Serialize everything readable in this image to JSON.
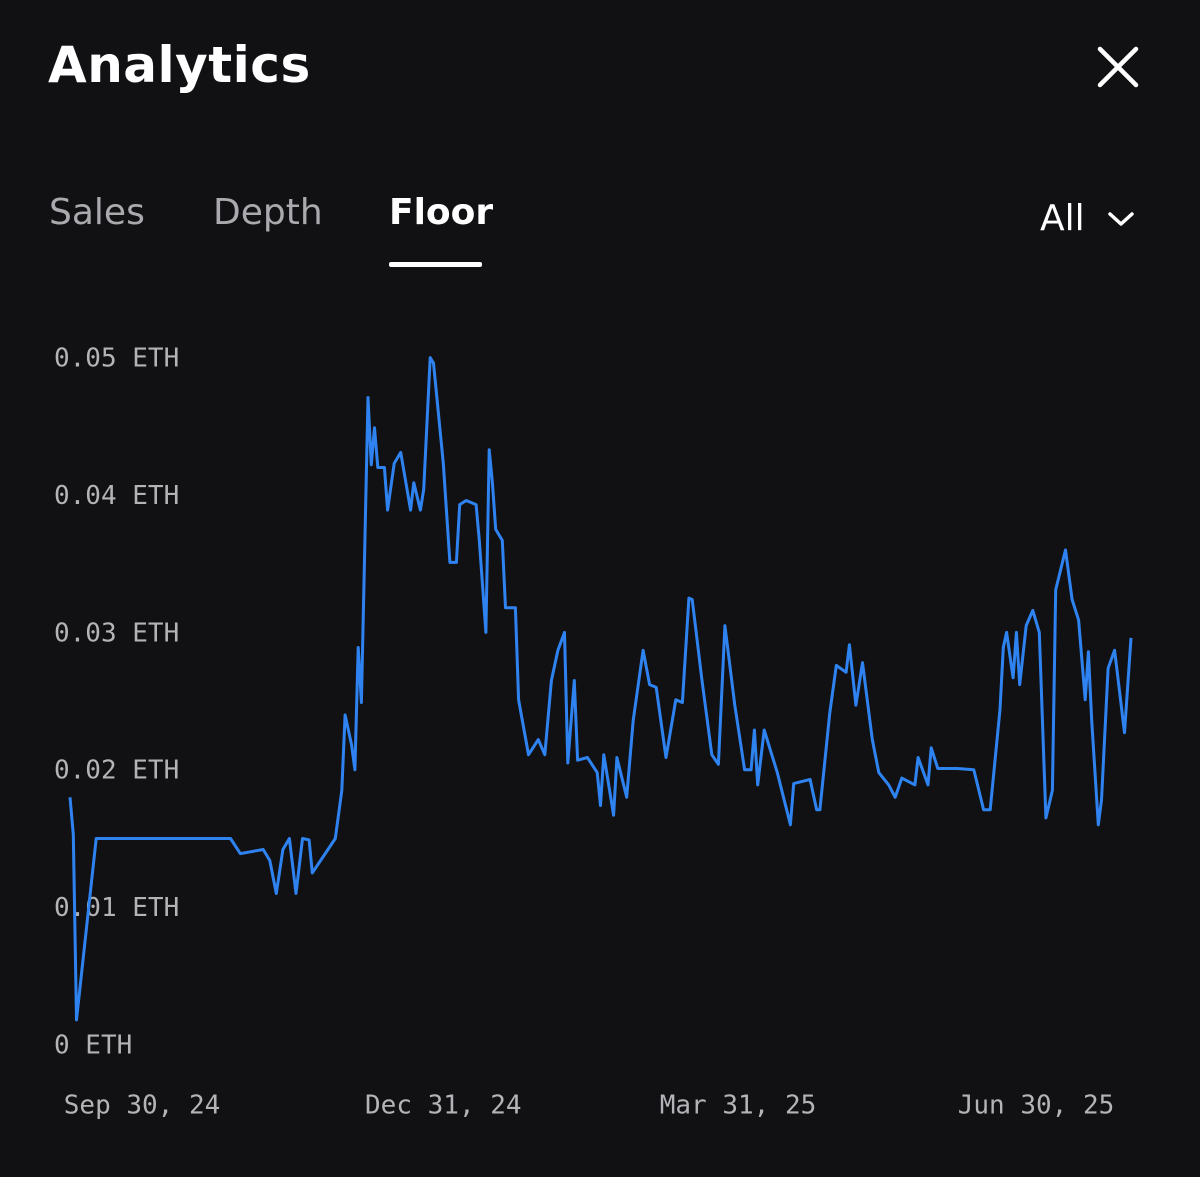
{
  "header": {
    "title": "Analytics"
  },
  "tabs": [
    "Sales",
    "Depth",
    "Floor"
  ],
  "range": "All",
  "chart_data": {
    "type": "line",
    "color": "#2f83f0",
    "x": [
      "2024-09-08",
      "2024-09-09",
      "2024-09-10",
      "2024-09-16",
      "2024-10-27",
      "2024-10-30",
      "2024-11-06",
      "2024-11-08",
      "2024-11-10",
      "2024-11-12",
      "2024-11-14",
      "2024-11-16",
      "2024-11-18",
      "2024-11-20",
      "2024-11-21",
      "2024-11-28",
      "2024-11-30",
      "2024-12-01",
      "2024-12-03",
      "2024-12-04",
      "2024-12-05",
      "2024-12-06",
      "2024-12-08",
      "2024-12-09",
      "2024-12-10",
      "2024-12-11",
      "2024-12-13",
      "2024-12-14",
      "2024-12-16",
      "2024-12-18",
      "2024-12-21",
      "2024-12-22",
      "2024-12-24",
      "2024-12-25",
      "2024-12-27",
      "2024-12-28",
      "2024-12-31",
      "2025-01-02",
      "2025-01-04",
      "2025-01-05",
      "2025-01-07",
      "2025-01-10",
      "2025-01-11",
      "2025-01-13",
      "2025-01-14",
      "2025-01-15",
      "2025-01-16",
      "2025-01-18",
      "2025-01-19",
      "2025-01-22",
      "2025-01-23",
      "2025-01-26",
      "2025-01-29",
      "2025-01-31",
      "2025-02-02",
      "2025-02-04",
      "2025-02-06",
      "2025-02-07",
      "2025-02-09",
      "2025-02-10",
      "2025-02-13",
      "2025-02-16",
      "2025-02-17",
      "2025-02-18",
      "2025-02-21",
      "2025-02-22",
      "2025-02-25",
      "2025-02-27",
      "2025-03-02",
      "2025-03-04",
      "2025-03-06",
      "2025-03-09",
      "2025-03-12",
      "2025-03-14",
      "2025-03-16",
      "2025-03-17",
      "2025-03-20",
      "2025-03-23",
      "2025-03-25",
      "2025-03-27",
      "2025-03-30",
      "2025-04-02",
      "2025-04-04",
      "2025-04-05",
      "2025-04-06",
      "2025-04-08",
      "2025-04-12",
      "2025-04-16",
      "2025-04-17",
      "2025-04-22",
      "2025-04-24",
      "2025-04-25",
      "2025-04-28",
      "2025-04-30",
      "2025-05-03",
      "2025-05-04",
      "2025-05-06",
      "2025-05-08",
      "2025-05-11",
      "2025-05-13",
      "2025-05-16",
      "2025-05-18",
      "2025-05-20",
      "2025-05-24",
      "2025-05-25",
      "2025-05-28",
      "2025-05-29",
      "2025-05-31",
      "2025-06-06",
      "2025-06-11",
      "2025-06-14",
      "2025-06-16",
      "2025-06-19",
      "2025-06-20",
      "2025-06-21",
      "2025-06-23",
      "2025-06-24",
      "2025-06-25",
      "2025-06-27",
      "2025-06-29",
      "2025-07-01",
      "2025-07-03",
      "2025-07-05",
      "2025-07-06",
      "2025-07-09",
      "2025-07-11",
      "2025-07-13",
      "2025-07-15",
      "2025-07-16",
      "2025-07-17",
      "2025-07-19",
      "2025-07-20",
      "2025-07-22",
      "2025-07-24",
      "2025-07-27",
      "2025-07-29"
    ],
    "values": [
      0.0181,
      0.0154,
      0.0019,
      0.0151,
      0.0151,
      0.014,
      0.0143,
      0.0135,
      0.0111,
      0.0143,
      0.0151,
      0.0111,
      0.0151,
      0.015,
      0.0126,
      0.0151,
      0.0186,
      0.0241,
      0.0219,
      0.0201,
      0.029,
      0.025,
      0.0472,
      0.0423,
      0.045,
      0.0421,
      0.0421,
      0.039,
      0.0424,
      0.0432,
      0.039,
      0.041,
      0.039,
      0.0405,
      0.0501,
      0.0497,
      0.0424,
      0.0352,
      0.0352,
      0.0394,
      0.0397,
      0.0394,
      0.0368,
      0.0301,
      0.0434,
      0.041,
      0.0376,
      0.0368,
      0.0319,
      0.0319,
      0.0252,
      0.0212,
      0.0223,
      0.0212,
      0.0266,
      0.0288,
      0.0301,
      0.0206,
      0.0266,
      0.0208,
      0.021,
      0.0199,
      0.0175,
      0.0212,
      0.0168,
      0.021,
      0.0181,
      0.0237,
      0.0288,
      0.0263,
      0.0261,
      0.021,
      0.0252,
      0.025,
      0.0326,
      0.0325,
      0.0266,
      0.0212,
      0.0205,
      0.0306,
      0.0248,
      0.0201,
      0.0201,
      0.023,
      0.019,
      0.023,
      0.0199,
      0.0161,
      0.0191,
      0.0194,
      0.0172,
      0.0172,
      0.0242,
      0.0277,
      0.0272,
      0.0292,
      0.0248,
      0.0279,
      0.0223,
      0.0199,
      0.019,
      0.0181,
      0.0195,
      0.019,
      0.021,
      0.019,
      0.0217,
      0.0202,
      0.0202,
      0.0201,
      0.0172,
      0.0172,
      0.0245,
      0.029,
      0.0301,
      0.0268,
      0.0301,
      0.0263,
      0.0306,
      0.0317,
      0.0301,
      0.0166,
      0.0186,
      0.0332,
      0.0361,
      0.0325,
      0.031,
      0.0252,
      0.0287,
      0.0237,
      0.0161,
      0.0179,
      0.0275,
      0.0288,
      0.0228,
      0.0297
    ],
    "xlim": [
      "2024-09-08",
      "2025-07-29"
    ],
    "xticks": [
      {
        "value": "2024-09-30",
        "label": "Sep 30, 24"
      },
      {
        "value": "2024-12-31",
        "label": "Dec 31, 24"
      },
      {
        "value": "2025-03-31",
        "label": "Mar 31, 25"
      },
      {
        "value": "2025-06-30",
        "label": "Jun 30, 25"
      }
    ],
    "ylim": [
      0,
      0.05
    ],
    "yticks": [
      {
        "value": 0,
        "label": "0 ETH"
      },
      {
        "value": 0.01,
        "label": "0.01 ETH"
      },
      {
        "value": 0.02,
        "label": "0.02 ETH"
      },
      {
        "value": 0.03,
        "label": "0.03 ETH"
      },
      {
        "value": 0.04,
        "label": "0.04 ETH"
      },
      {
        "value": 0.05,
        "label": "0.05 ETH"
      }
    ]
  }
}
